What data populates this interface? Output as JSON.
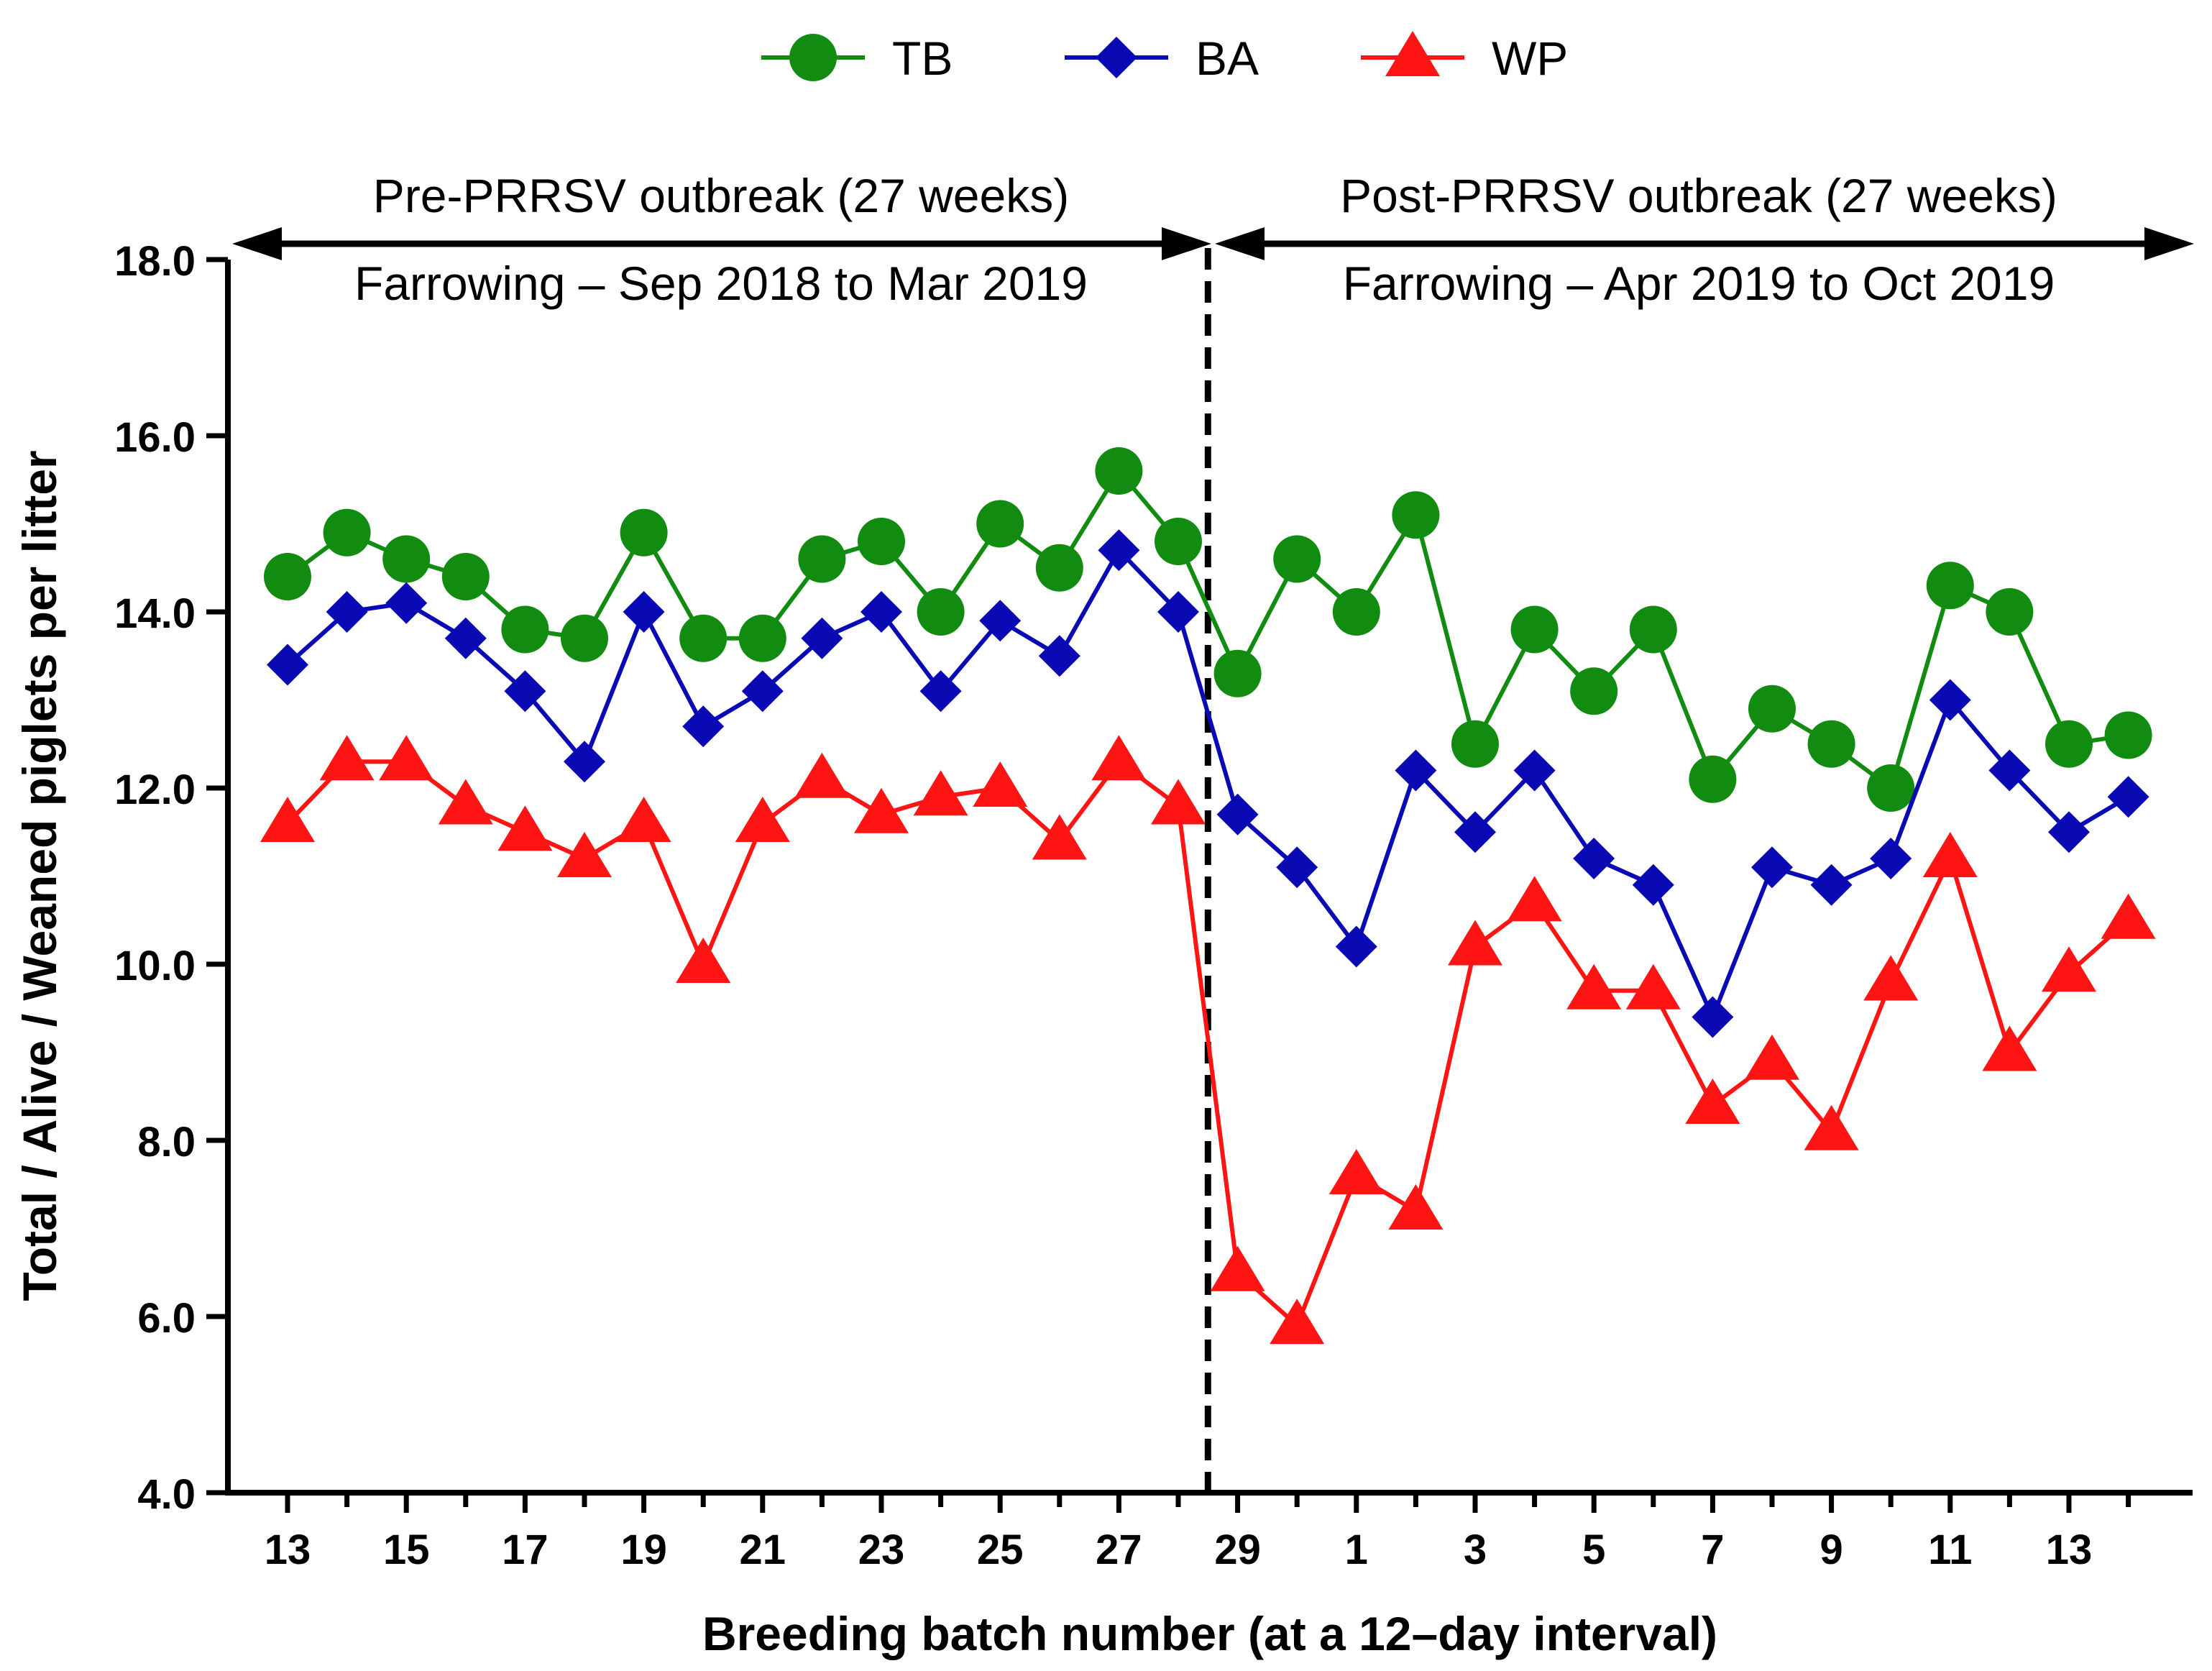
{
  "legend": {
    "items": [
      {
        "label": "TB",
        "marker": "circle",
        "color": "#118c11"
      },
      {
        "label": "BA",
        "marker": "diamond",
        "color": "#0a0ab4"
      },
      {
        "label": "WP",
        "marker": "triangle",
        "color": "#ff1414"
      }
    ]
  },
  "annotations": {
    "pre_title": "Pre-PRRSV outbreak (27 weeks)",
    "pre_subtitle": "Farrowing – Sep 2018 to Mar 2019",
    "post_title": "Post-PRRSV outbreak (27 weeks)",
    "post_subtitle": "Farrowing – Apr 2019 to Oct 2019"
  },
  "chart_data": {
    "type": "line",
    "title": "",
    "xlabel": "Breeding batch number (at a 12–day interval)",
    "ylabel": "Total / Alive / Weaned piglets per litter",
    "ylim": [
      4.0,
      18.0
    ],
    "yticks": [
      "4.0",
      "6.0",
      "8.0",
      "10.0",
      "12.0",
      "14.0",
      "16.0",
      "18.0"
    ],
    "categories": [
      "13",
      "14",
      "15",
      "16",
      "17",
      "18",
      "19",
      "20",
      "21",
      "22",
      "23",
      "24",
      "25",
      "26",
      "27",
      "28",
      "29",
      "30",
      "1",
      "2",
      "3",
      "4",
      "5",
      "6",
      "7",
      "8",
      "9",
      "10",
      "11",
      "12",
      "13",
      "14"
    ],
    "xtick_labels": [
      "13",
      "",
      "15",
      "",
      "17",
      "",
      "19",
      "",
      "21",
      "",
      "23",
      "",
      "25",
      "",
      "27",
      "",
      "29",
      "",
      "1",
      "",
      "3",
      "",
      "5",
      "",
      "7",
      "",
      "9",
      "",
      "11",
      "",
      "13",
      ""
    ],
    "outbreak_divider_after_index": 15,
    "series": [
      {
        "name": "TB",
        "color": "#118c11",
        "marker": "circle",
        "values": [
          14.4,
          14.9,
          14.6,
          14.4,
          13.8,
          13.7,
          14.9,
          13.7,
          13.7,
          14.6,
          14.8,
          14.0,
          15.0,
          14.5,
          15.6,
          14.8,
          13.3,
          14.6,
          14.0,
          15.1,
          12.5,
          13.8,
          13.1,
          13.8,
          12.1,
          12.9,
          12.5,
          12.0,
          14.3,
          14.0,
          12.5,
          12.6
        ]
      },
      {
        "name": "BA",
        "color": "#0a0ab4",
        "marker": "diamond",
        "values": [
          13.4,
          14.0,
          14.1,
          13.7,
          13.1,
          12.3,
          14.0,
          12.7,
          13.1,
          13.7,
          14.0,
          13.1,
          13.9,
          13.5,
          14.7,
          14.0,
          11.7,
          11.1,
          10.2,
          12.2,
          11.5,
          12.2,
          11.2,
          10.9,
          9.4,
          11.1,
          10.9,
          11.2,
          13.0,
          12.2,
          11.5,
          11.9
        ]
      },
      {
        "name": "WP",
        "color": "#ff1414",
        "marker": "triangle",
        "values": [
          11.6,
          12.3,
          12.3,
          11.8,
          11.5,
          11.2,
          11.6,
          10.0,
          11.6,
          12.1,
          11.7,
          11.9,
          12.0,
          11.4,
          12.3,
          11.8,
          6.5,
          5.9,
          7.6,
          7.2,
          10.2,
          10.7,
          9.7,
          9.7,
          8.4,
          8.9,
          8.1,
          9.8,
          11.2,
          9.0,
          9.9,
          10.5
        ]
      }
    ]
  }
}
